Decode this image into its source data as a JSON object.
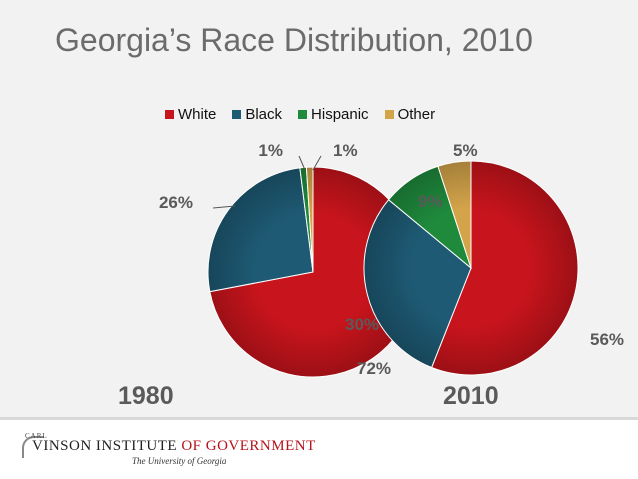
{
  "title": "Georgia’s Race Distribution, 2010",
  "colors": {
    "white": "#c8141c",
    "black": "#1e5a74",
    "hispanic": "#1f8a3c",
    "other": "#d4a44a"
  },
  "chart_data": {
    "type": "pie",
    "title": "Georgia’s Race Distribution, 2010",
    "legend": [
      "White",
      "Black",
      "Hispanic",
      "Other"
    ],
    "legend_position": "top",
    "pies": [
      {
        "name": "1980",
        "values": [
          72,
          26,
          1,
          1
        ],
        "labels": [
          "72%",
          "26%",
          "1%",
          "1%"
        ]
      },
      {
        "name": "2010",
        "values": [
          56,
          30,
          9,
          5
        ],
        "labels": [
          "56%",
          "30%",
          "9%",
          "5%"
        ]
      }
    ]
  },
  "footer": {
    "logo_carl": "CARL",
    "logo_vinson": "VINSON INSTITUTE ",
    "logo_gov": "OF GOVERNMENT",
    "logo_sub": "The University of Georgia"
  }
}
